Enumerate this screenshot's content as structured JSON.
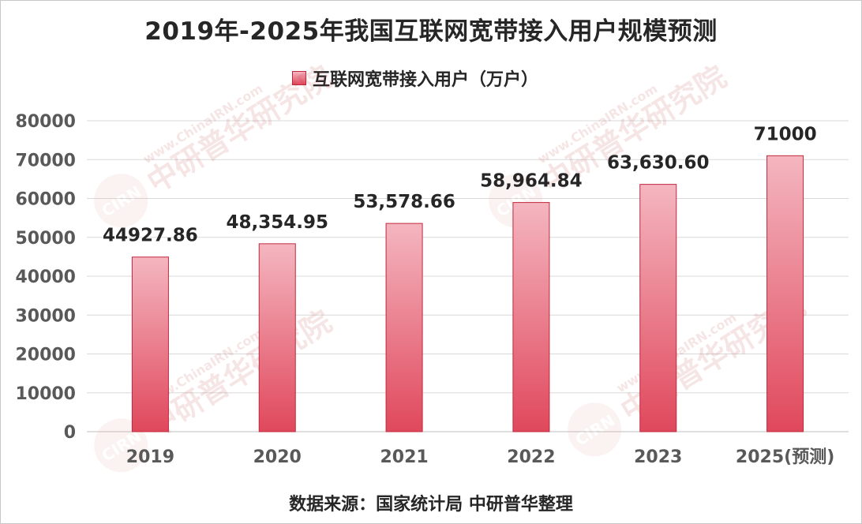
{
  "chart_data": {
    "type": "bar",
    "title": "2019年-2025年我国互联网宽带接入用户规模预测",
    "categories": [
      "2019",
      "2020",
      "2021",
      "2022",
      "2023",
      "2025(预测)"
    ],
    "series": [
      {
        "name": "互联网宽带接入用户（万户）",
        "values": [
          44927.86,
          48354.95,
          53578.66,
          58964.84,
          63630.6,
          71000
        ],
        "labels": [
          "44927.86",
          "48,354.95",
          "53,578.66",
          "58,964.84",
          "63,630.60",
          "71000"
        ]
      }
    ],
    "ylim": [
      0,
      80000
    ],
    "yticks": [
      "0",
      "10000",
      "20000",
      "30000",
      "40000",
      "50000",
      "60000",
      "70000",
      "80000"
    ],
    "grid": true,
    "legend_position": "top-center",
    "colors": {
      "bar_top": "#f4b6c0",
      "bar_bottom": "#e0485c",
      "bar_border": "#c0283c",
      "grid": "#d9d9d9"
    }
  },
  "source": "数据来源：国家统计局 中研普华整理",
  "watermark": {
    "brand": "中研普华研究院",
    "url": "www.ChinaIRN.com",
    "logo": "CIRN"
  }
}
